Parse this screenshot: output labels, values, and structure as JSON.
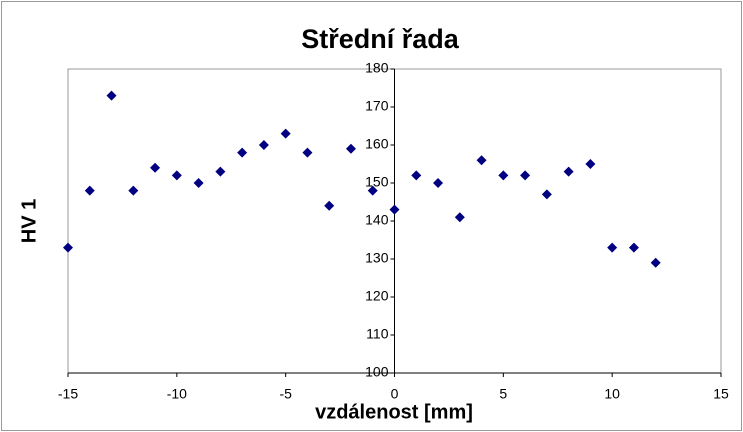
{
  "chart_data": {
    "type": "scatter",
    "title": "Střední řada",
    "x_label": "vzdálenost [mm]",
    "y_label": "HV 1",
    "series": [
      {
        "name": "HV 1",
        "color": "#000080",
        "x": [
          -15,
          -14,
          -13,
          -12,
          -11,
          -10,
          -9,
          -8,
          -7,
          -6,
          -5,
          -4,
          -3,
          -2,
          -1,
          0,
          1,
          2,
          3,
          4,
          5,
          6,
          7,
          8,
          9,
          10,
          11,
          12
        ],
        "values": [
          133,
          148,
          173,
          148,
          154,
          152,
          150,
          153,
          158,
          160,
          163,
          158,
          144,
          159,
          148,
          143,
          152,
          150,
          141,
          156,
          152,
          152,
          147,
          153,
          155,
          133,
          133,
          129
        ]
      }
    ],
    "xlim": [
      -15,
      15
    ],
    "xticks": [
      -15,
      -10,
      -5,
      0,
      5,
      10,
      15
    ],
    "ylim": [
      100,
      180
    ],
    "yticks": [
      100,
      110,
      120,
      130,
      140,
      150,
      160,
      170,
      180
    ]
  }
}
